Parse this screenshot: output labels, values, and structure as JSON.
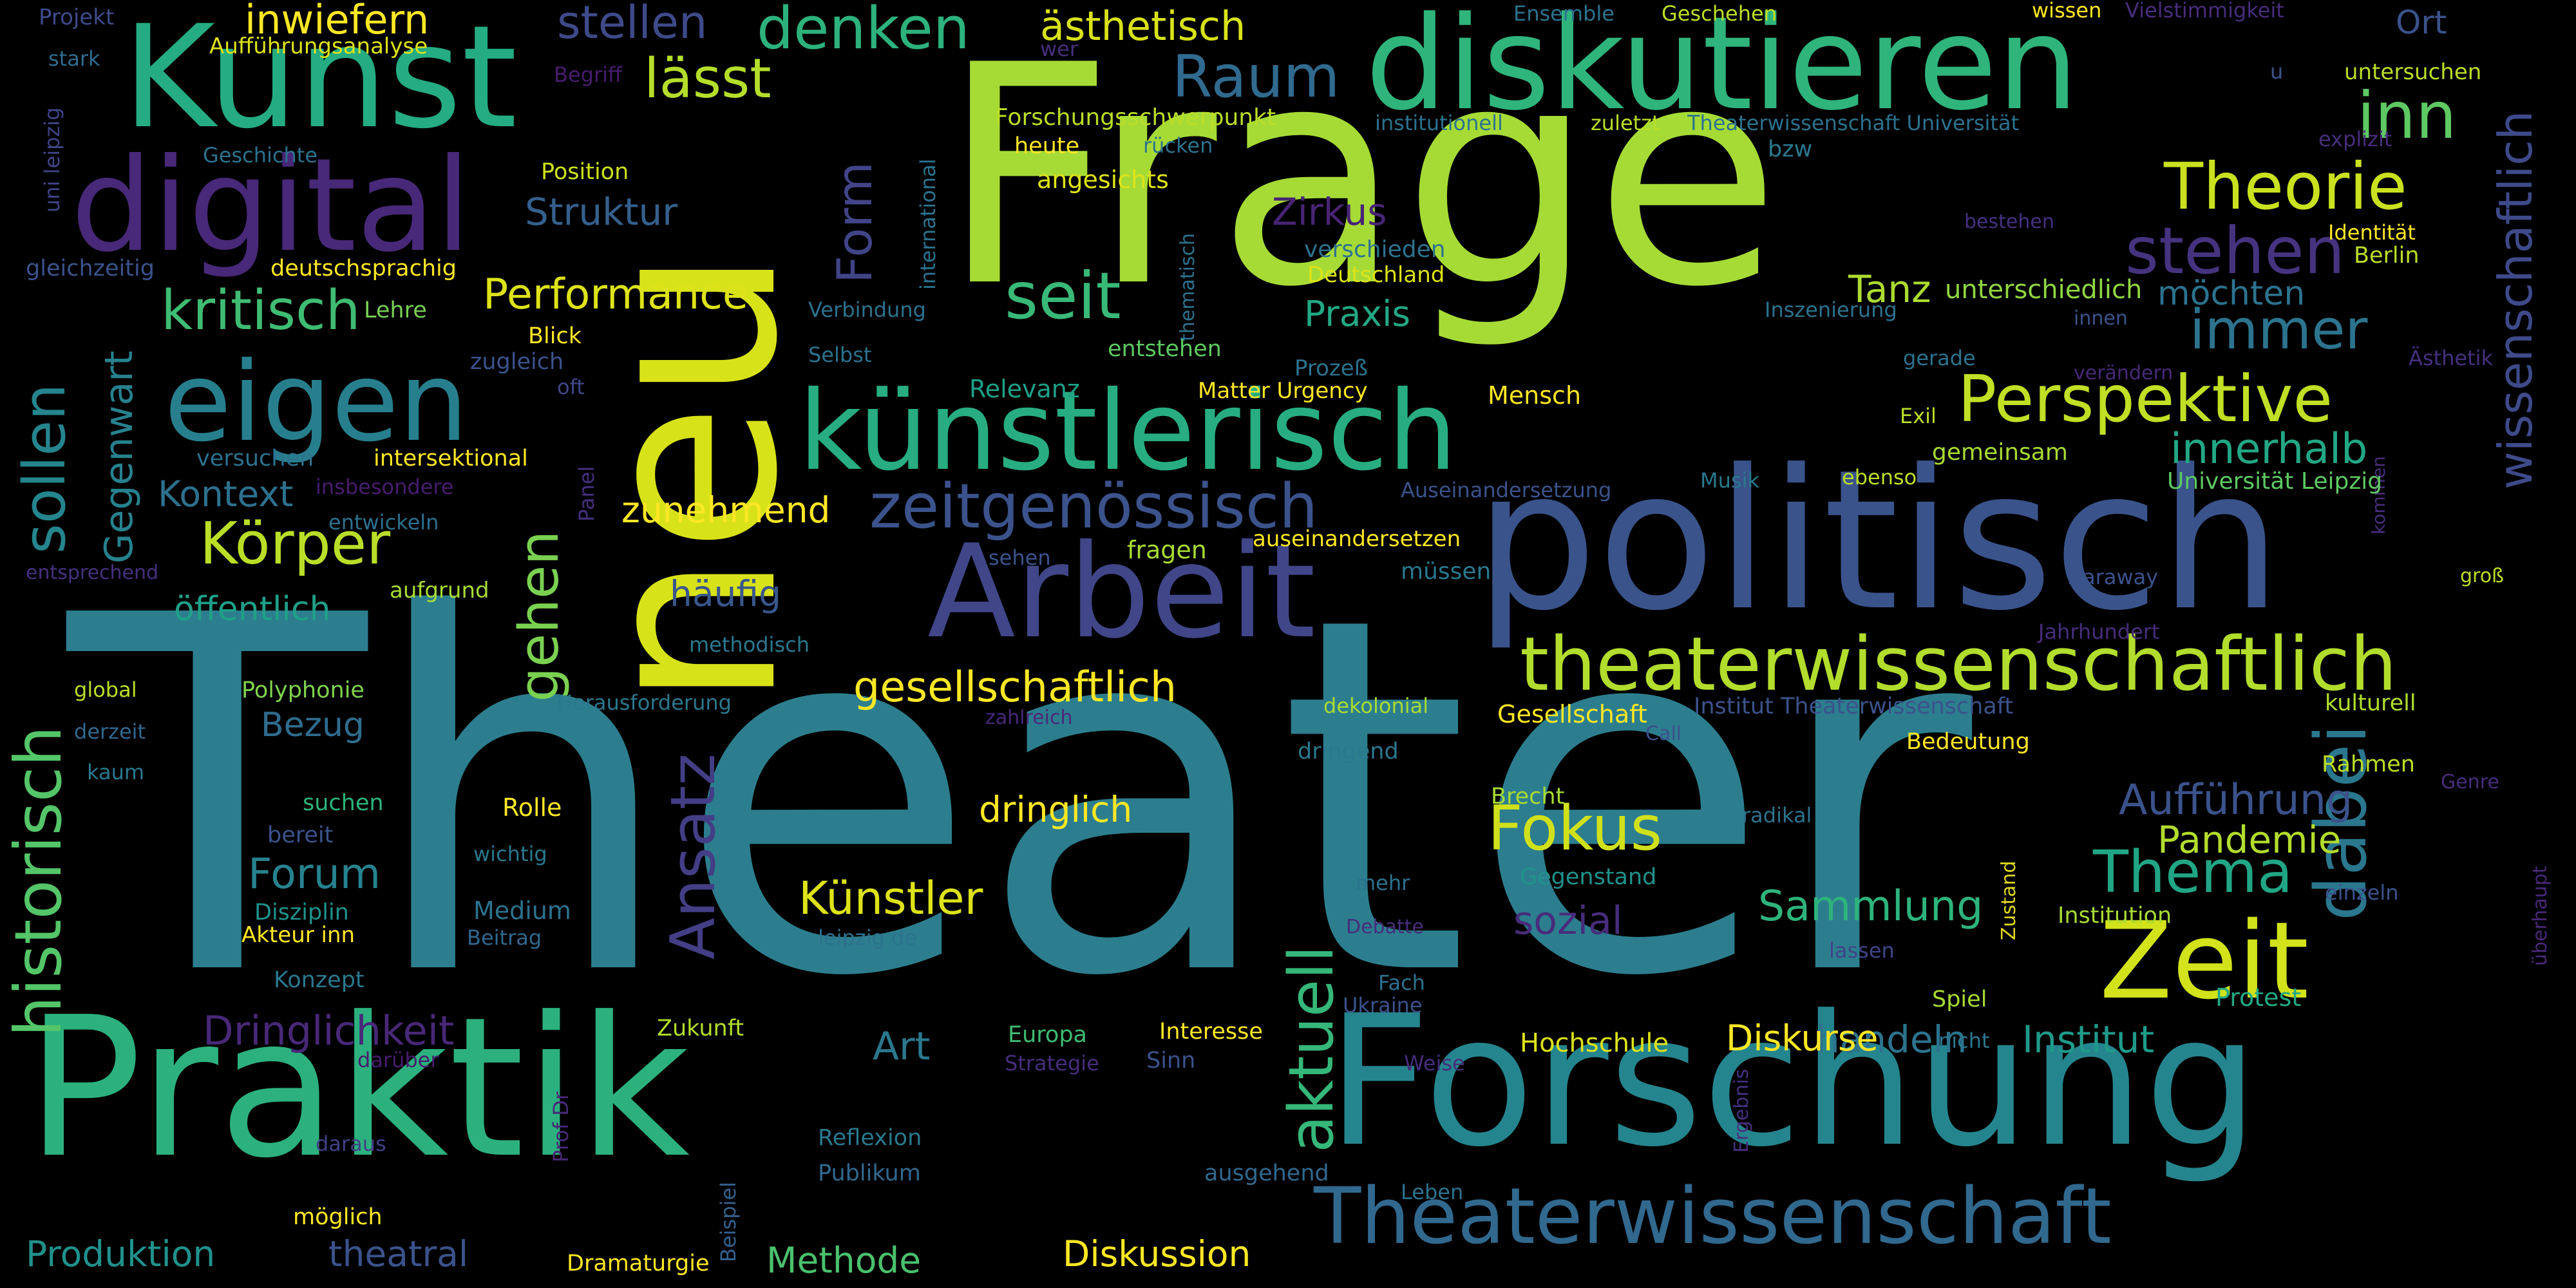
{
  "words": [
    {
      "id": "theater",
      "text": "Theater",
      "color": "#2c7e8e"
    },
    {
      "id": "frage",
      "text": "Frage",
      "color": "#a6db36"
    },
    {
      "id": "neu",
      "text": "neu",
      "color": "#d8e219"
    },
    {
      "id": "politisch",
      "text": "politisch",
      "color": "#3a538b"
    },
    {
      "id": "praktik",
      "text": "Praktik",
      "color": "#2cb17e"
    },
    {
      "id": "forschung",
      "text": "Forschung",
      "color": "#25858e"
    },
    {
      "id": "kunst",
      "text": "Kunst",
      "color": "#25ac82"
    },
    {
      "id": "digital",
      "text": "digital",
      "color": "#482878"
    },
    {
      "id": "diskutieren",
      "text": "diskutieren",
      "color": "#2fb47c"
    },
    {
      "id": "arbeit",
      "text": "Arbeit",
      "color": "#404688"
    },
    {
      "id": "kuenstlerisch",
      "text": "künstlerisch",
      "color": "#27ad81"
    },
    {
      "id": "eigen",
      "text": "eigen",
      "color": "#277f8e"
    },
    {
      "id": "theaterwissenschaft",
      "text": "Theaterwissenschaft",
      "color": "#31688e"
    },
    {
      "id": "theaterwissenschaftlich",
      "text": "theaterwissenschaftlich",
      "color": "#b2dd2d"
    },
    {
      "id": "zeit",
      "text": "Zeit",
      "color": "#d2e21b"
    },
    {
      "id": "historisch",
      "text": "historisch",
      "color": "#54c568"
    },
    {
      "id": "aktuell",
      "text": "aktuell",
      "color": "#35b779"
    },
    {
      "id": "dabei",
      "text": "dabei",
      "color": "#2a778e"
    },
    {
      "id": "zeitgenoessisch",
      "text": "zeitgenössisch",
      "color": "#3b528b"
    },
    {
      "id": "perspektive",
      "text": "Perspektive",
      "color": "#c0df25"
    },
    {
      "id": "raum",
      "text": "Raum",
      "color": "#306a8e"
    },
    {
      "id": "seit",
      "text": "seit",
      "color": "#38b977"
    },
    {
      "id": "stehen",
      "text": "stehen",
      "color": "#46337f"
    },
    {
      "id": "theorie",
      "text": "Theorie",
      "color": "#cae11f"
    },
    {
      "id": "inn",
      "text": "inn",
      "color": "#5ec962"
    },
    {
      "id": "ansatz",
      "text": "Ansatz",
      "color": "#433e85"
    },
    {
      "id": "koerper",
      "text": "Körper",
      "color": "#bade28"
    },
    {
      "id": "kritisch",
      "text": "kritisch",
      "color": "#3fbc73"
    },
    {
      "id": "fokus",
      "text": "Fokus",
      "color": "#d0e11c"
    },
    {
      "id": "thema",
      "text": "Thema",
      "color": "#21a685"
    },
    {
      "id": "sollen",
      "text": "sollen",
      "color": "#25858e"
    },
    {
      "id": "gehen",
      "text": "gehen",
      "color": "#7ad151"
    },
    {
      "id": "form",
      "text": "Form",
      "color": "#414487"
    },
    {
      "id": "lasst",
      "text": "lässt",
      "color": "#b5de2b"
    },
    {
      "id": "denken",
      "text": "denken",
      "color": "#2db27d"
    },
    {
      "id": "stellen",
      "text": "stellen",
      "color": "#3e4a89"
    },
    {
      "id": "immer",
      "text": "immer",
      "color": "#2c738e"
    },
    {
      "id": "performance",
      "text": "Performance",
      "color": "#dde318"
    },
    {
      "id": "wissenschaftlich",
      "text": "wissenschaftlich",
      "color": "#3e4a89"
    },
    {
      "id": "gegenwart",
      "text": "Gegenwart",
      "color": "#26828e"
    },
    {
      "id": "kuenstler",
      "text": "Künstler",
      "color": "#dde318"
    },
    {
      "id": "auffuehrung",
      "text": "Aufführung",
      "color": "#3b528b"
    },
    {
      "id": "innerhalb",
      "text": "innerhalb",
      "color": "#22a785"
    },
    {
      "id": "gesellschaftlich",
      "text": "gesellschaftlich",
      "color": "#fde725"
    },
    {
      "id": "sammlung",
      "text": "Sammlung",
      "color": "#2eb37c"
    },
    {
      "id": "dringlichkeit",
      "text": "Dringlichkeit",
      "color": "#482878"
    },
    {
      "id": "forum",
      "text": "Forum",
      "color": "#26828e"
    },
    {
      "id": "inwiefern",
      "text": "inwiefern",
      "color": "#fde725"
    },
    {
      "id": "aesthetisch",
      "text": "ästhetisch",
      "color": "#d8e219"
    },
    {
      "id": "struktur",
      "text": "Struktur",
      "color": "#35608d"
    },
    {
      "id": "zirkus",
      "text": "Zirkus",
      "color": "#482475"
    },
    {
      "id": "tanz",
      "text": "Tanz",
      "color": "#addc30"
    },
    {
      "id": "handeln",
      "text": "handeln",
      "color": "#2c738e"
    },
    {
      "id": "institut",
      "text": "Institut",
      "color": "#1f9a8a"
    },
    {
      "id": "pandemie",
      "text": "Pandemie",
      "color": "#b2dd2d"
    },
    {
      "id": "zunehmend",
      "text": "zunehmend",
      "color": "#fde725"
    },
    {
      "id": "haeufig",
      "text": "häufig",
      "color": "#39568c"
    },
    {
      "id": "kontext",
      "text": "Kontext",
      "color": "#2d708e"
    },
    {
      "id": "praxis",
      "text": "Praxis",
      "color": "#22a884"
    },
    {
      "id": "dringlich",
      "text": "dringlich",
      "color": "#fde725"
    },
    {
      "id": "produktion",
      "text": "Produktion",
      "color": "#21918c"
    },
    {
      "id": "theatral",
      "text": "theatral",
      "color": "#3b528b"
    },
    {
      "id": "methode",
      "text": "Methode",
      "color": "#4ac16d"
    },
    {
      "id": "diskussion",
      "text": "Diskussion",
      "color": "#fde725"
    },
    {
      "id": "diskurse",
      "text": "Diskurse",
      "color": "#fde725"
    },
    {
      "id": "sozial",
      "text": "sozial",
      "color": "#472d7b"
    },
    {
      "id": "art",
      "text": "Art",
      "color": "#2a788e"
    },
    {
      "id": "moechten",
      "text": "möchten",
      "color": "#2c728e"
    },
    {
      "id": "unterschiedlich",
      "text": "unterschiedlich",
      "color": "#90d743"
    },
    {
      "id": "bezug",
      "text": "Bezug",
      "color": "#2f6c8e"
    },
    {
      "id": "oeffentlich",
      "text": "öffentlich",
      "color": "#1fa088"
    },
    {
      "id": "hochschule",
      "text": "Hochschule",
      "color": "#dde318"
    },
    {
      "id": "projekt",
      "text": "Projekt",
      "color": "#3e4a89"
    },
    {
      "id": "auffuehrungsanalyse",
      "text": "Aufführungsanalyse",
      "color": "#dde318"
    },
    {
      "id": "stark",
      "text": "stark",
      "color": "#2f6c8e"
    },
    {
      "id": "uni_leipzig",
      "text": "uni leipzig",
      "color": "#414487"
    },
    {
      "id": "begriff",
      "text": "Begriff",
      "color": "#481c6e"
    },
    {
      "id": "geschichte",
      "text": "Geschichte",
      "color": "#2c728e"
    },
    {
      "id": "position",
      "text": "Position",
      "color": "#cde11d"
    },
    {
      "id": "gleichzeitig",
      "text": "gleichzeitig",
      "color": "#3b528b"
    },
    {
      "id": "deutschsprachig",
      "text": "deutschsprachig",
      "color": "#fde725"
    },
    {
      "id": "lehre",
      "text": "Lehre",
      "color": "#77d153"
    },
    {
      "id": "zugleich",
      "text": "zugleich",
      "color": "#3b528b"
    },
    {
      "id": "blick",
      "text": "Blick",
      "color": "#fde725"
    },
    {
      "id": "oft",
      "text": "oft",
      "color": "#404688"
    },
    {
      "id": "intersektional",
      "text": "intersektional",
      "color": "#fde725"
    },
    {
      "id": "versuchen",
      "text": "versuchen",
      "color": "#2c728e"
    },
    {
      "id": "insbesondere",
      "text": "insbesondere",
      "color": "#481c6e"
    },
    {
      "id": "entwickeln",
      "text": "entwickeln",
      "color": "#2d708e"
    },
    {
      "id": "entsprechend",
      "text": "entsprechend",
      "color": "#46307e"
    },
    {
      "id": "aufgrund",
      "text": "aufgrund",
      "color": "#a8db34"
    },
    {
      "id": "polyphonie",
      "text": "Polyphonie",
      "color": "#7fd34e"
    },
    {
      "id": "global",
      "text": "global",
      "color": "#bade28"
    },
    {
      "id": "derzeit",
      "text": "derzeit",
      "color": "#30688e"
    },
    {
      "id": "kaum",
      "text": "kaum",
      "color": "#2a788e"
    },
    {
      "id": "suchen",
      "text": "suchen",
      "color": "#2eb37c"
    },
    {
      "id": "bereit",
      "text": "bereit",
      "color": "#3b528b"
    },
    {
      "id": "rolle",
      "text": "Rolle",
      "color": "#fde725"
    },
    {
      "id": "wichtig",
      "text": "wichtig",
      "color": "#2a788e"
    },
    {
      "id": "disziplin",
      "text": "Disziplin",
      "color": "#20928c"
    },
    {
      "id": "medium",
      "text": "Medium",
      "color": "#2c728e"
    },
    {
      "id": "akteur_inn",
      "text": "Akteur inn",
      "color": "#fde725"
    },
    {
      "id": "beitrag",
      "text": "Beitrag",
      "color": "#31688e"
    },
    {
      "id": "konzept",
      "text": "Konzept",
      "color": "#2a788e"
    },
    {
      "id": "zukunft",
      "text": "Zukunft",
      "color": "#b2dd2d"
    },
    {
      "id": "darueber",
      "text": "darüber",
      "color": "#481c6e"
    },
    {
      "id": "daraus",
      "text": "daraus",
      "color": "#424086"
    },
    {
      "id": "prof_dr",
      "text": "Prof Dr",
      "color": "#482878"
    },
    {
      "id": "moeglich",
      "text": "möglich",
      "color": "#fde725"
    },
    {
      "id": "dramaturgie",
      "text": "Dramaturgie",
      "color": "#fde725"
    },
    {
      "id": "beispiel",
      "text": "Beispiel",
      "color": "#34618d"
    },
    {
      "id": "reflexion",
      "text": "Reflexion",
      "color": "#2a788e"
    },
    {
      "id": "publikum",
      "text": "Publikum",
      "color": "#31688e"
    },
    {
      "id": "ausgehend",
      "text": "ausgehend",
      "color": "#31688e"
    },
    {
      "id": "leben",
      "text": "Leben",
      "color": "#2c738e"
    },
    {
      "id": "ergebnis",
      "text": "Ergebnis",
      "color": "#46307e"
    },
    {
      "id": "europa",
      "text": "Europa",
      "color": "#3fbc73"
    },
    {
      "id": "strategie",
      "text": "Strategie",
      "color": "#472d7b"
    },
    {
      "id": "sinn",
      "text": "Sinn",
      "color": "#3b528b"
    },
    {
      "id": "interesse",
      "text": "Interesse",
      "color": "#fde725"
    },
    {
      "id": "weise",
      "text": "Weise",
      "color": "#472d7b"
    },
    {
      "id": "nicht",
      "text": "nicht",
      "color": "#2a788e"
    },
    {
      "id": "spiel",
      "text": "Spiel",
      "color": "#a8db34"
    },
    {
      "id": "protest",
      "text": "Protest",
      "color": "#22a884"
    },
    {
      "id": "ukraine",
      "text": "Ukraine",
      "color": "#3b528b"
    },
    {
      "id": "fach",
      "text": "Fach",
      "color": "#2c728e"
    },
    {
      "id": "debatte",
      "text": "Debatte",
      "color": "#472d7b"
    },
    {
      "id": "lassen",
      "text": "lassen",
      "color": "#414487"
    },
    {
      "id": "zustand",
      "text": "Zustand",
      "color": "#ded621"
    },
    {
      "id": "institution",
      "text": "Institution",
      "color": "#a8db34"
    },
    {
      "id": "einzeln",
      "text": "einzeln",
      "color": "#3b528b"
    },
    {
      "id": "ueberhaupt",
      "text": "überhaupt",
      "color": "#482878"
    },
    {
      "id": "leipzig_de",
      "text": "leipzig de",
      "color": "#2c728e"
    },
    {
      "id": "mehr",
      "text": "mehr",
      "color": "#2c728e"
    },
    {
      "id": "gegenstand",
      "text": "Gegenstand",
      "color": "#20928c"
    },
    {
      "id": "brecht",
      "text": "Brecht",
      "color": "#a8db34"
    },
    {
      "id": "dringend",
      "text": "dringend",
      "color": "#2a788e"
    },
    {
      "id": "radikal",
      "text": "radikal",
      "color": "#2c728e"
    },
    {
      "id": "bedeutung",
      "text": "Bedeutung",
      "color": "#fde725"
    },
    {
      "id": "rahmen",
      "text": "Rahmen",
      "color": "#bade28"
    },
    {
      "id": "genre",
      "text": "Genre",
      "color": "#472d7b"
    },
    {
      "id": "kulturell",
      "text": "kulturell",
      "color": "#b2dd2d"
    },
    {
      "id": "call",
      "text": "Call",
      "color": "#3b528b"
    },
    {
      "id": "gesellschaft",
      "text": "Gesellschaft",
      "color": "#fde725"
    },
    {
      "id": "institut_theaterwissenschaft",
      "text": "Institut Theaterwissenschaft",
      "color": "#3b528b"
    },
    {
      "id": "herausforderung",
      "text": "Herausforderung",
      "color": "#2a788e"
    },
    {
      "id": "methodisch",
      "text": "methodisch",
      "color": "#2a788e"
    },
    {
      "id": "zahlreich",
      "text": "zahlreich",
      "color": "#482878"
    },
    {
      "id": "dekolonial",
      "text": "dekolonial",
      "color": "#a8db34"
    },
    {
      "id": "jahrhundert",
      "text": "Jahrhundert",
      "color": "#472d7b"
    },
    {
      "id": "haraway",
      "text": "Haraway",
      "color": "#3b528b"
    },
    {
      "id": "gross",
      "text": "groß",
      "color": "#bade28"
    },
    {
      "id": "kommen",
      "text": "kommen",
      "color": "#472d7b"
    },
    {
      "id": "universitaet_leipzig",
      "text": "Universität Leipzig",
      "color": "#5ec962"
    },
    {
      "id": "gemeinsam",
      "text": "gemeinsam",
      "color": "#a8db34"
    },
    {
      "id": "ebenso",
      "text": "ebenso",
      "color": "#bade28"
    },
    {
      "id": "exil",
      "text": "Exil",
      "color": "#bade28"
    },
    {
      "id": "musik",
      "text": "Musik",
      "color": "#2a788e"
    },
    {
      "id": "auseinandersetzung",
      "text": "Auseinandersetzung",
      "color": "#3b528b"
    },
    {
      "id": "veraendern",
      "text": "verändern",
      "color": "#482878"
    },
    {
      "id": "aesthetik",
      "text": "Ästhetik",
      "color": "#46307e"
    },
    {
      "id": "innen",
      "text": "innen",
      "color": "#3b528b"
    },
    {
      "id": "gerade",
      "text": "gerade",
      "color": "#2c728e"
    },
    {
      "id": "inszenierung",
      "text": "Inszenierung",
      "color": "#2c728e"
    },
    {
      "id": "identitaet",
      "text": "Identität",
      "color": "#fde725"
    },
    {
      "id": "berlin",
      "text": "Berlin",
      "color": "#bade28"
    },
    {
      "id": "bestehen",
      "text": "bestehen",
      "color": "#46307e"
    },
    {
      "id": "untersuchen",
      "text": "untersuchen",
      "color": "#bade28"
    },
    {
      "id": "explizit",
      "text": "explizit",
      "color": "#472d7b"
    },
    {
      "id": "u",
      "text": "u",
      "color": "#3b528b"
    },
    {
      "id": "wissen",
      "text": "wissen",
      "color": "#fde725"
    },
    {
      "id": "vielstimmigkeit",
      "text": "Vielstimmigkeit",
      "color": "#472d7b"
    },
    {
      "id": "ort",
      "text": "Ort",
      "color": "#3b528b"
    },
    {
      "id": "ensemble",
      "text": "Ensemble",
      "color": "#2c728e"
    },
    {
      "id": "geschehen",
      "text": "Geschehen",
      "color": "#bade28"
    },
    {
      "id": "wer",
      "text": "wer",
      "color": "#472d7b"
    },
    {
      "id": "forschungsschwerpunkt",
      "text": "Forschungsschwerpunkt",
      "color": "#bade28"
    },
    {
      "id": "institutionell",
      "text": "institutionell",
      "color": "#2c728e"
    },
    {
      "id": "zuletzt",
      "text": "zuletzt",
      "color": "#bade28"
    },
    {
      "id": "theaterwissenschaft_universitaet",
      "text": "Theaterwissenschaft Universität",
      "color": "#2c728e"
    },
    {
      "id": "heute",
      "text": "heute",
      "color": "#fde725"
    },
    {
      "id": "ruecken",
      "text": "rücken",
      "color": "#2c728e"
    },
    {
      "id": "bzw",
      "text": "bzw",
      "color": "#2a788e"
    },
    {
      "id": "angesichts",
      "text": "angesichts",
      "color": "#dde318"
    },
    {
      "id": "thematisch",
      "text": "thematisch",
      "color": "#2c728e"
    },
    {
      "id": "international",
      "text": "international",
      "color": "#2c728e"
    },
    {
      "id": "verschieden",
      "text": "verschieden",
      "color": "#2c728e"
    },
    {
      "id": "deutschland",
      "text": "Deutschland",
      "color": "#dde318"
    },
    {
      "id": "bestehen2",
      "text": "Verbindung",
      "color": "#2c728e"
    },
    {
      "id": "selbst",
      "text": "Selbst",
      "color": "#2c728e"
    },
    {
      "id": "entstehen",
      "text": "entstehen",
      "color": "#5ec962"
    },
    {
      "id": "prozess",
      "text": "Prozeß",
      "color": "#2c728e"
    },
    {
      "id": "relevanz",
      "text": "Relevanz",
      "color": "#1fa088"
    },
    {
      "id": "matter_urgency",
      "text": "Matter Urgency",
      "color": "#fde725"
    },
    {
      "id": "mensch",
      "text": "Mensch",
      "color": "#fde725"
    },
    {
      "id": "panel",
      "text": "Panel",
      "color": "#46307e"
    },
    {
      "id": "fragen",
      "text": "fragen",
      "color": "#a8db34"
    },
    {
      "id": "sehen",
      "text": "sehen",
      "color": "#3b528b"
    },
    {
      "id": "auseinandersetzen",
      "text": "auseinandersetzen",
      "color": "#fde725"
    },
    {
      "id": "muessen",
      "text": "müssen",
      "color": "#2a788e"
    }
  ]
}
